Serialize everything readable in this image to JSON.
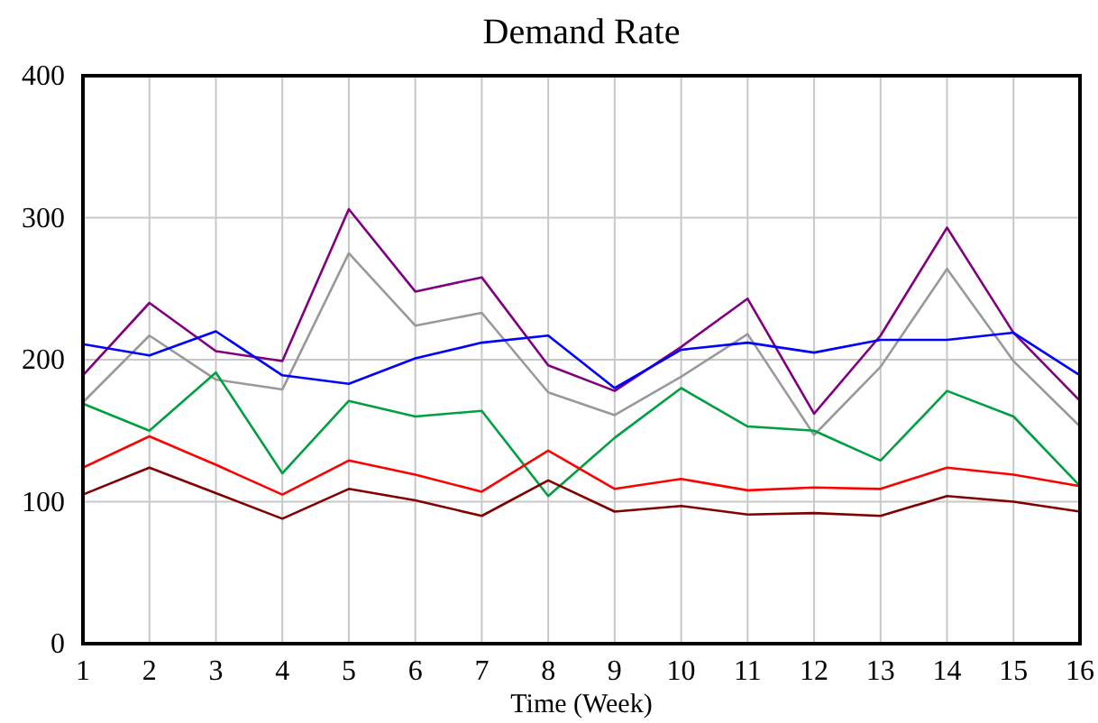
{
  "chart_data": {
    "type": "line",
    "title": "Demand Rate",
    "xlabel": "Time (Week)",
    "x": [
      1,
      2,
      3,
      4,
      5,
      6,
      7,
      8,
      9,
      10,
      11,
      12,
      13,
      14,
      15,
      16
    ],
    "xlim": [
      1,
      16
    ],
    "xticks": [
      1,
      2,
      3,
      4,
      5,
      6,
      7,
      8,
      9,
      10,
      11,
      12,
      13,
      14,
      15,
      16
    ],
    "ylim": [
      0,
      400
    ],
    "yticks": [
      0,
      100,
      200,
      300,
      400
    ],
    "grid": true,
    "marker": "none",
    "line_style": "solid",
    "series": [
      {
        "color": "#800080",
        "values": [
          189,
          240,
          206,
          199,
          306,
          248,
          258,
          196,
          178,
          209,
          243,
          162,
          217,
          293,
          219,
          171
        ]
      },
      {
        "color": "#999999",
        "values": [
          170,
          217,
          186,
          179,
          275,
          224,
          233,
          177,
          161,
          188,
          218,
          147,
          195,
          264,
          199,
          153
        ]
      },
      {
        "color": "#0000ff",
        "values": [
          211,
          203,
          220,
          189,
          183,
          201,
          212,
          217,
          180,
          207,
          212,
          205,
          214,
          214,
          219,
          189
        ]
      },
      {
        "color": "#00a040",
        "values": [
          169,
          150,
          191,
          120,
          171,
          160,
          164,
          104,
          145,
          180,
          153,
          150,
          129,
          178,
          160,
          111
        ]
      },
      {
        "color": "#ff0000",
        "values": [
          124,
          146,
          126,
          105,
          129,
          119,
          107,
          136,
          109,
          116,
          108,
          110,
          109,
          124,
          119,
          111
        ]
      },
      {
        "color": "#800000",
        "values": [
          105,
          124,
          106,
          88,
          109,
          101,
          90,
          115,
          93,
          97,
          91,
          92,
          90,
          104,
          100,
          93
        ]
      }
    ]
  }
}
